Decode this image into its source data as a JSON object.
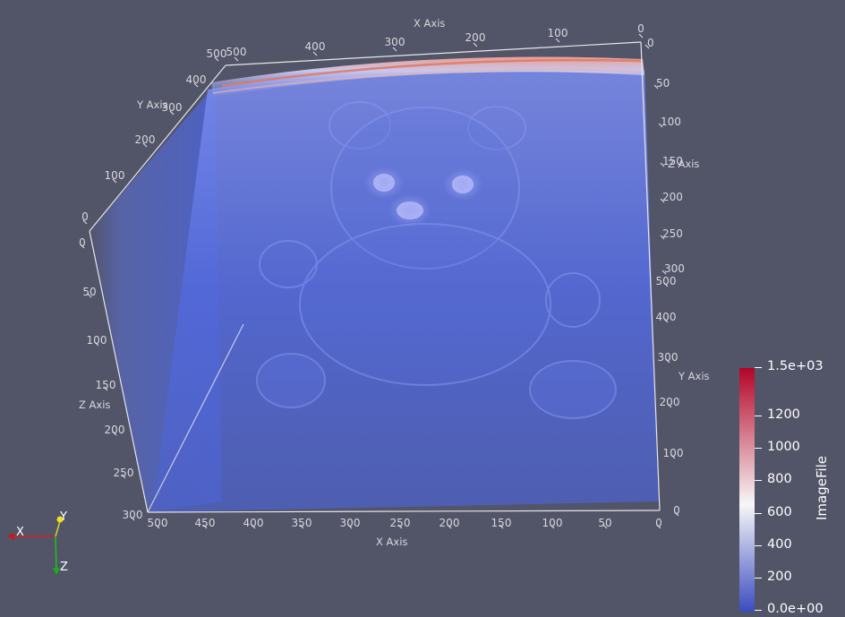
{
  "viewer": {
    "background": "#525468",
    "volume_colors": [
      "#3b4cc0",
      "#f7f7f7",
      "#b40426"
    ]
  },
  "axes": {
    "top_x": {
      "title": "X Axis",
      "ticks": [
        "500",
        "400",
        "300",
        "200",
        "100",
        "0"
      ]
    },
    "left_y": {
      "title": "Y Axis",
      "ticks": [
        "500",
        "400",
        "300",
        "200",
        "100",
        "0"
      ]
    },
    "right_z": {
      "title": "Z Axis",
      "ticks": [
        "0",
        "50",
        "100",
        "150",
        "200",
        "250",
        "300"
      ]
    },
    "left_z": {
      "title": "Z Axis",
      "ticks": [
        "0",
        "50",
        "100",
        "150",
        "200",
        "250",
        "300"
      ]
    },
    "bottom_x": {
      "title": "X Axis",
      "ticks": [
        "500",
        "450",
        "400",
        "350",
        "300",
        "250",
        "200",
        "150",
        "100",
        "50",
        "0"
      ]
    },
    "right_y": {
      "title": "Y Axis",
      "ticks": [
        "500",
        "400",
        "300",
        "200",
        "100",
        "0"
      ]
    }
  },
  "orientation": {
    "x": "X",
    "y": "Y",
    "z": "Z"
  },
  "colorbar": {
    "title": "ImageFile",
    "labels": [
      "1.5e+03",
      "1200",
      "1000",
      "800",
      "600",
      "400",
      "200",
      "0.0e+00"
    ],
    "colors": [
      "#b40426",
      "#f7f7f7",
      "#3b4cc0"
    ]
  }
}
